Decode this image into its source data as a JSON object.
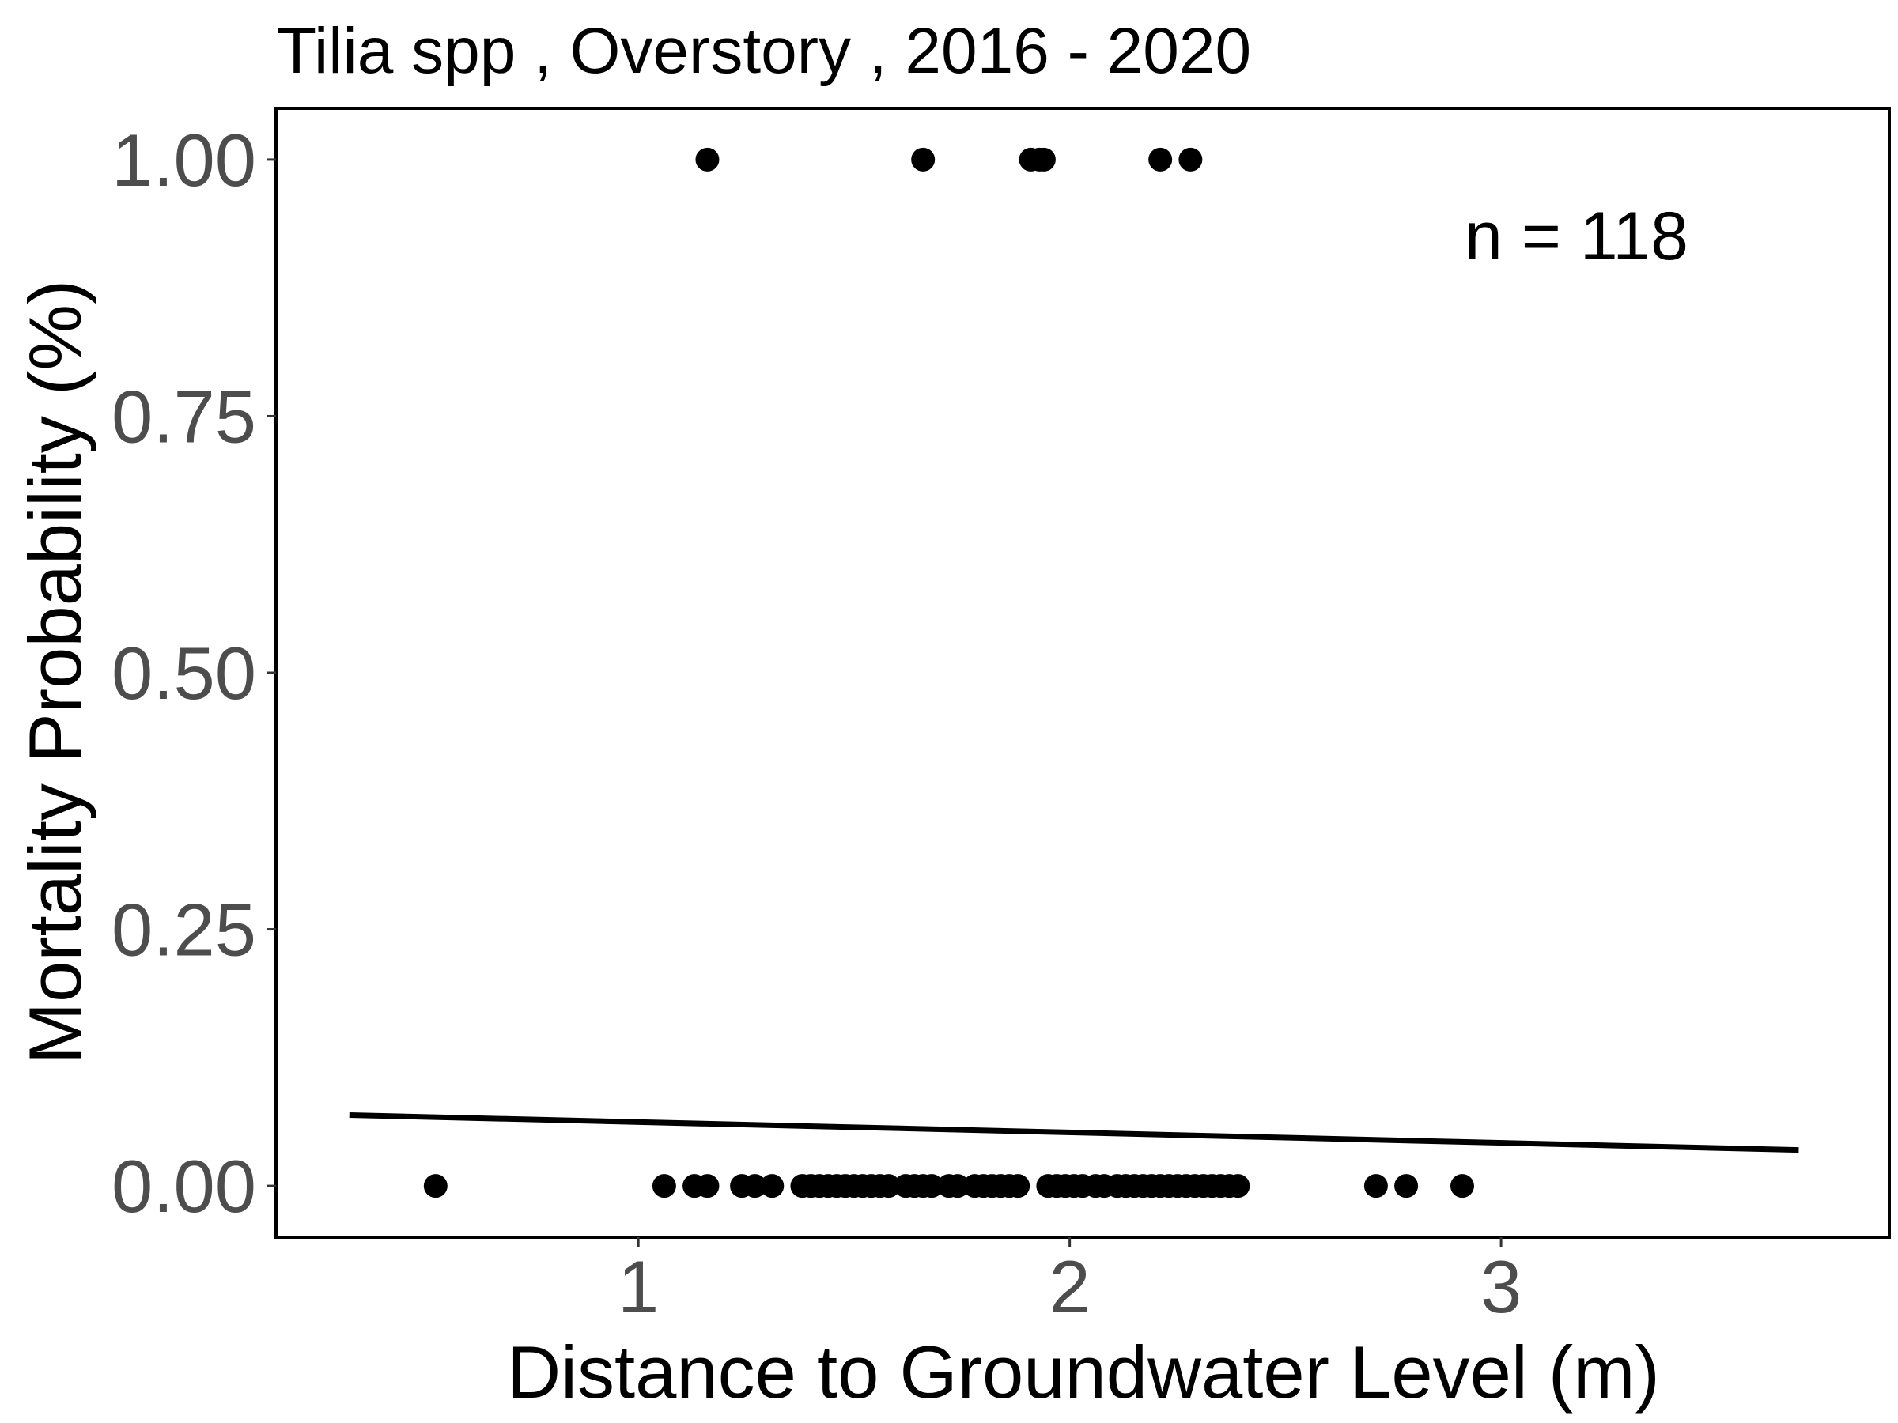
{
  "chart_data": {
    "type": "scatter",
    "title": "Tilia spp , Overstory , 2016 - 2020",
    "xlabel": "Distance to Groundwater Level (m)",
    "ylabel": "Mortality Probability (%)",
    "xlim": [
      0.16,
      3.9
    ],
    "ylim": [
      -0.05,
      1.05
    ],
    "x_ticks": [
      1,
      2,
      3
    ],
    "x_tick_labels": [
      "1",
      "2",
      "3"
    ],
    "y_ticks": [
      0,
      0.25,
      0.5,
      0.75,
      1.0
    ],
    "y_tick_labels": [
      "0.00",
      "0.25",
      "0.50",
      "0.75",
      "1.00"
    ],
    "annotation": "n =  118",
    "grid": false,
    "legend": "none",
    "point_color": "#000000",
    "series": [
      {
        "values": [
          {
            "x": 1.16,
            "y": 1
          },
          {
            "x": 1.66,
            "y": 1
          },
          {
            "x": 1.91,
            "y": 1
          },
          {
            "x": 1.93,
            "y": 1
          },
          {
            "x": 1.94,
            "y": 1
          },
          {
            "x": 2.21,
            "y": 1
          },
          {
            "x": 2.28,
            "y": 1
          },
          {
            "x": 0.53,
            "y": 0
          },
          {
            "x": 1.06,
            "y": 0
          },
          {
            "x": 1.13,
            "y": 0
          },
          {
            "x": 1.16,
            "y": 0
          },
          {
            "x": 1.24,
            "y": 0
          },
          {
            "x": 1.27,
            "y": 0
          },
          {
            "x": 1.31,
            "y": 0
          },
          {
            "x": 1.38,
            "y": 0
          },
          {
            "x": 1.4,
            "y": 0
          },
          {
            "x": 1.42,
            "y": 0
          },
          {
            "x": 1.44,
            "y": 0
          },
          {
            "x": 1.46,
            "y": 0
          },
          {
            "x": 1.48,
            "y": 0
          },
          {
            "x": 1.5,
            "y": 0
          },
          {
            "x": 1.52,
            "y": 0
          },
          {
            "x": 1.54,
            "y": 0
          },
          {
            "x": 1.56,
            "y": 0
          },
          {
            "x": 1.58,
            "y": 0
          },
          {
            "x": 1.62,
            "y": 0
          },
          {
            "x": 1.64,
            "y": 0
          },
          {
            "x": 1.66,
            "y": 0
          },
          {
            "x": 1.68,
            "y": 0
          },
          {
            "x": 1.72,
            "y": 0
          },
          {
            "x": 1.74,
            "y": 0
          },
          {
            "x": 1.78,
            "y": 0
          },
          {
            "x": 1.8,
            "y": 0
          },
          {
            "x": 1.82,
            "y": 0
          },
          {
            "x": 1.84,
            "y": 0
          },
          {
            "x": 1.86,
            "y": 0
          },
          {
            "x": 1.88,
            "y": 0
          },
          {
            "x": 1.95,
            "y": 0
          },
          {
            "x": 1.97,
            "y": 0
          },
          {
            "x": 1.99,
            "y": 0
          },
          {
            "x": 2.01,
            "y": 0
          },
          {
            "x": 2.03,
            "y": 0
          },
          {
            "x": 2.06,
            "y": 0
          },
          {
            "x": 2.08,
            "y": 0
          },
          {
            "x": 2.11,
            "y": 0
          },
          {
            "x": 2.13,
            "y": 0
          },
          {
            "x": 2.15,
            "y": 0
          },
          {
            "x": 2.17,
            "y": 0
          },
          {
            "x": 2.19,
            "y": 0
          },
          {
            "x": 2.21,
            "y": 0
          },
          {
            "x": 2.23,
            "y": 0
          },
          {
            "x": 2.25,
            "y": 0
          },
          {
            "x": 2.27,
            "y": 0
          },
          {
            "x": 2.29,
            "y": 0
          },
          {
            "x": 2.31,
            "y": 0
          },
          {
            "x": 2.33,
            "y": 0
          },
          {
            "x": 2.35,
            "y": 0
          },
          {
            "x": 2.37,
            "y": 0
          },
          {
            "x": 2.39,
            "y": 0
          },
          {
            "x": 2.71,
            "y": 0
          },
          {
            "x": 2.78,
            "y": 0
          },
          {
            "x": 2.91,
            "y": 0
          }
        ]
      }
    ],
    "fit_line": {
      "x": [
        0.33,
        3.69
      ],
      "y": [
        0.069,
        0.035
      ]
    }
  }
}
